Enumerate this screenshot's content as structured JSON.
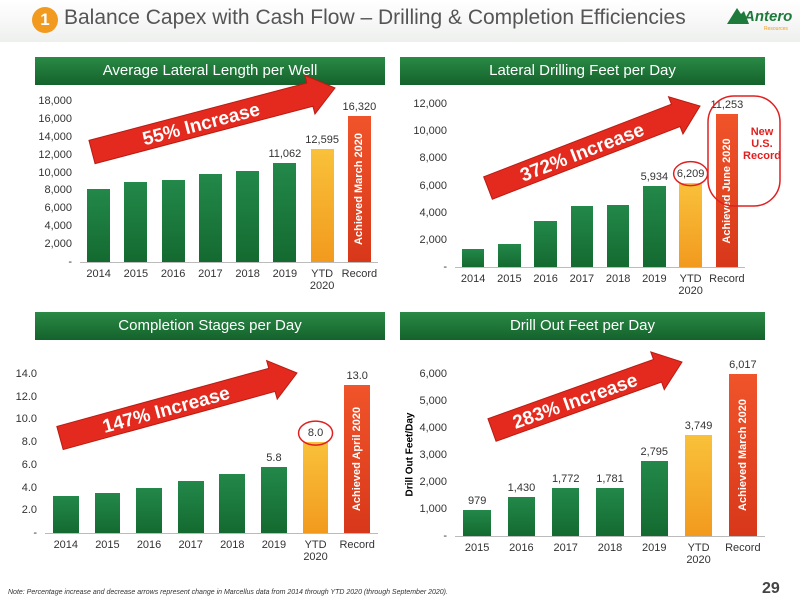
{
  "header": {
    "badge": "1",
    "title": "Balance Capex with Cash Flow – Drilling & Completion Efficiencies",
    "logo": "Antero",
    "logo_sub": "Resources"
  },
  "footnote": "Note: Percentage increase and decrease arrows represent change in Marcellus data from 2014 through YTD 2020 (through September 2020).",
  "page_number": "29",
  "chart_data": [
    {
      "type": "bar",
      "title": "Average Lateral Length per Well",
      "categories": [
        "2014",
        "2015",
        "2016",
        "2017",
        "2018",
        "2019",
        "YTD 2020",
        "Record"
      ],
      "values": [
        8200,
        9000,
        9200,
        9800,
        10200,
        11062,
        12595,
        16320
      ],
      "value_labels": [
        null,
        null,
        null,
        null,
        null,
        "11,062",
        "12,595",
        "16,320"
      ],
      "colors": [
        "#1d7a3b",
        "#1d7a3b",
        "#1d7a3b",
        "#1d7a3b",
        "#1d7a3b",
        "#1d7a3b",
        "#f7a81b",
        "#e8401c"
      ],
      "ylim": [
        0,
        18000
      ],
      "yticks": [
        {
          "value": 0,
          "label": "-"
        },
        {
          "value": 2000,
          "label": "2,000"
        },
        {
          "value": 4000,
          "label": "4,000"
        },
        {
          "value": 6000,
          "label": "6,000"
        },
        {
          "value": 8000,
          "label": "8,000"
        },
        {
          "value": 10000,
          "label": "10,000"
        },
        {
          "value": 12000,
          "label": "12,000"
        },
        {
          "value": 14000,
          "label": "14,000"
        },
        {
          "value": 16000,
          "label": "16,000"
        },
        {
          "value": 18000,
          "label": "18,000"
        }
      ],
      "arrow_label": "55% Increase",
      "record_note": "Achieved March 2020"
    },
    {
      "type": "bar",
      "title": "Lateral Drilling Feet per Day",
      "categories": [
        "2014",
        "2015",
        "2016",
        "2017",
        "2018",
        "2019",
        "YTD 2020",
        "Record"
      ],
      "values": [
        1300,
        1700,
        3400,
        4500,
        4550,
        5934,
        6209,
        11253
      ],
      "value_labels": [
        null,
        null,
        null,
        null,
        null,
        "5,934",
        "6,209",
        "11,253"
      ],
      "colors": [
        "#1d7a3b",
        "#1d7a3b",
        "#1d7a3b",
        "#1d7a3b",
        "#1d7a3b",
        "#1d7a3b",
        "#f7a81b",
        "#e8401c"
      ],
      "ylim": [
        0,
        12000
      ],
      "yticks": [
        {
          "value": 0,
          "label": "-"
        },
        {
          "value": 2000,
          "label": "2,000"
        },
        {
          "value": 4000,
          "label": "4,000"
        },
        {
          "value": 6000,
          "label": "6,000"
        },
        {
          "value": 8000,
          "label": "8,000"
        },
        {
          "value": 10000,
          "label": "10,000"
        },
        {
          "value": 12000,
          "label": "12,000"
        }
      ],
      "arrow_label": "372% Increase",
      "record_note": "Achieved June 2020",
      "callout": "New U.S. Record"
    },
    {
      "type": "bar",
      "title": "Completion Stages per Day",
      "categories": [
        "2014",
        "2015",
        "2016",
        "2017",
        "2018",
        "2019",
        "YTD 2020",
        "Record"
      ],
      "values": [
        3.3,
        3.5,
        4.0,
        4.6,
        5.2,
        5.8,
        8.0,
        13.0
      ],
      "value_labels": [
        null,
        null,
        null,
        null,
        null,
        "5.8",
        "8.0",
        "13.0"
      ],
      "colors": [
        "#1d7a3b",
        "#1d7a3b",
        "#1d7a3b",
        "#1d7a3b",
        "#1d7a3b",
        "#1d7a3b",
        "#f7a81b",
        "#e8401c"
      ],
      "ylim": [
        0,
        14
      ],
      "yticks": [
        {
          "value": 0,
          "label": "-"
        },
        {
          "value": 2,
          "label": "2.0"
        },
        {
          "value": 4,
          "label": "4.0"
        },
        {
          "value": 6,
          "label": "6.0"
        },
        {
          "value": 8,
          "label": "8.0"
        },
        {
          "value": 10,
          "label": "10.0"
        },
        {
          "value": 12,
          "label": "12.0"
        },
        {
          "value": 14,
          "label": "14.0"
        }
      ],
      "arrow_label": "147% Increase",
      "record_note": "Achieved April 2020"
    },
    {
      "type": "bar",
      "title": "Drill Out Feet per Day",
      "y_label": "Drill Out Feet/Day",
      "categories": [
        "2015",
        "2016",
        "2017",
        "2018",
        "2019",
        "YTD 2020",
        "Record"
      ],
      "values": [
        979,
        1430,
        1772,
        1781,
        2795,
        3749,
        6017
      ],
      "value_labels": [
        "979",
        "1,430",
        "1,772",
        "1,781",
        "2,795",
        "3,749",
        "6,017"
      ],
      "colors": [
        "#1d7a3b",
        "#1d7a3b",
        "#1d7a3b",
        "#1d7a3b",
        "#1d7a3b",
        "#f7a81b",
        "#e8401c"
      ],
      "ylim": [
        0,
        6000
      ],
      "yticks": [
        {
          "value": 0,
          "label": "-"
        },
        {
          "value": 1000,
          "label": "1,000"
        },
        {
          "value": 2000,
          "label": "2,000"
        },
        {
          "value": 3000,
          "label": "3,000"
        },
        {
          "value": 4000,
          "label": "4,000"
        },
        {
          "value": 5000,
          "label": "5,000"
        },
        {
          "value": 6000,
          "label": "6,000"
        }
      ],
      "arrow_label": "283% Increase",
      "record_note": "Achieved March 2020"
    }
  ]
}
